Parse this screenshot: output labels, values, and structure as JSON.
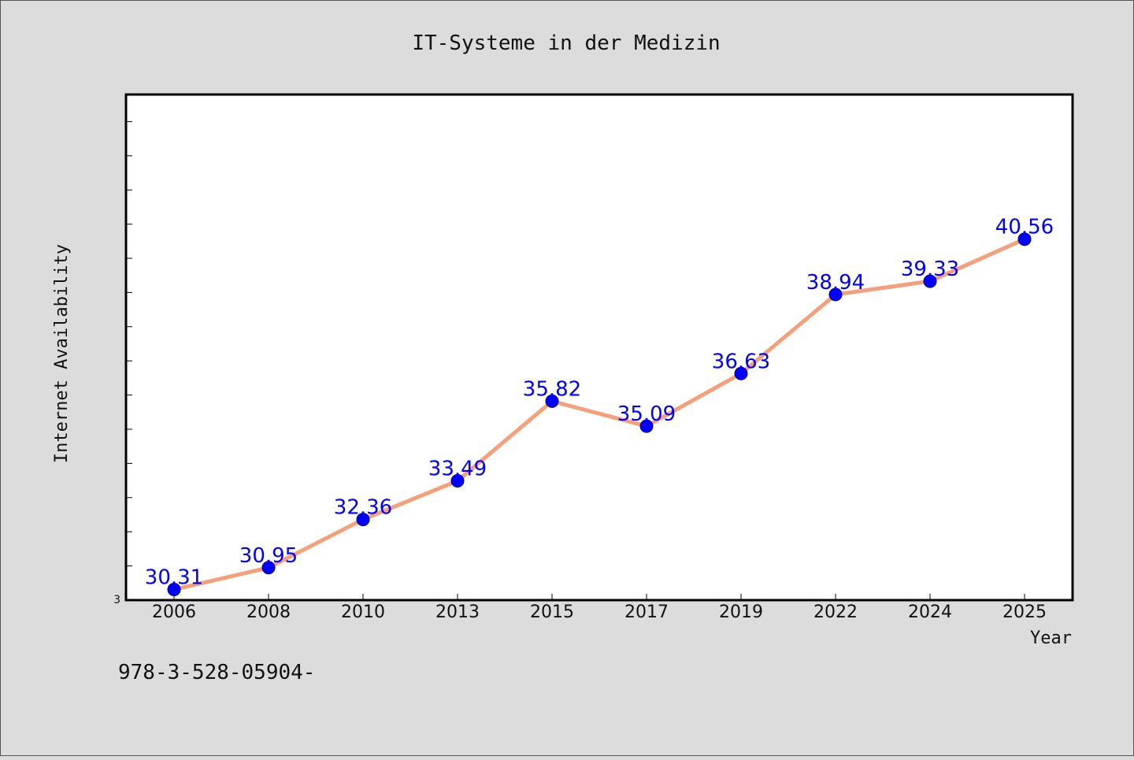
{
  "chart_data": {
    "type": "line",
    "title": "IT-Systeme in der Medizin",
    "xlabel": "Year",
    "ylabel": "Internet Availability",
    "categories": [
      "2006",
      "2008",
      "2010",
      "2013",
      "2015",
      "2017",
      "2019",
      "2022",
      "2024",
      "2025"
    ],
    "series": [
      {
        "values": [
          30.31,
          30.95,
          32.36,
          33.49,
          35.82,
          35.09,
          36.63,
          38.94,
          39.33,
          40.56
        ],
        "labels": [
          "30.31",
          "30.95",
          "32.36",
          "33.49",
          "35.82",
          "35.09",
          "36.63",
          "38.94",
          "39.33",
          "40.56"
        ],
        "line_color": "#f4a07a",
        "marker_color": "#0000ff"
      }
    ],
    "ylim": [
      30.0,
      45.0
    ],
    "y_tick_count": 15,
    "y_tick_labels": [
      "3"
    ],
    "grid": false,
    "legend": "none"
  },
  "footer_text": "978-3-528-05904-",
  "colors": {
    "background": "#dcdcdc",
    "plot_background": "#ffffff",
    "line": "#f4a07a",
    "marker": "#0000ff",
    "data_label": "#0000ff"
  }
}
